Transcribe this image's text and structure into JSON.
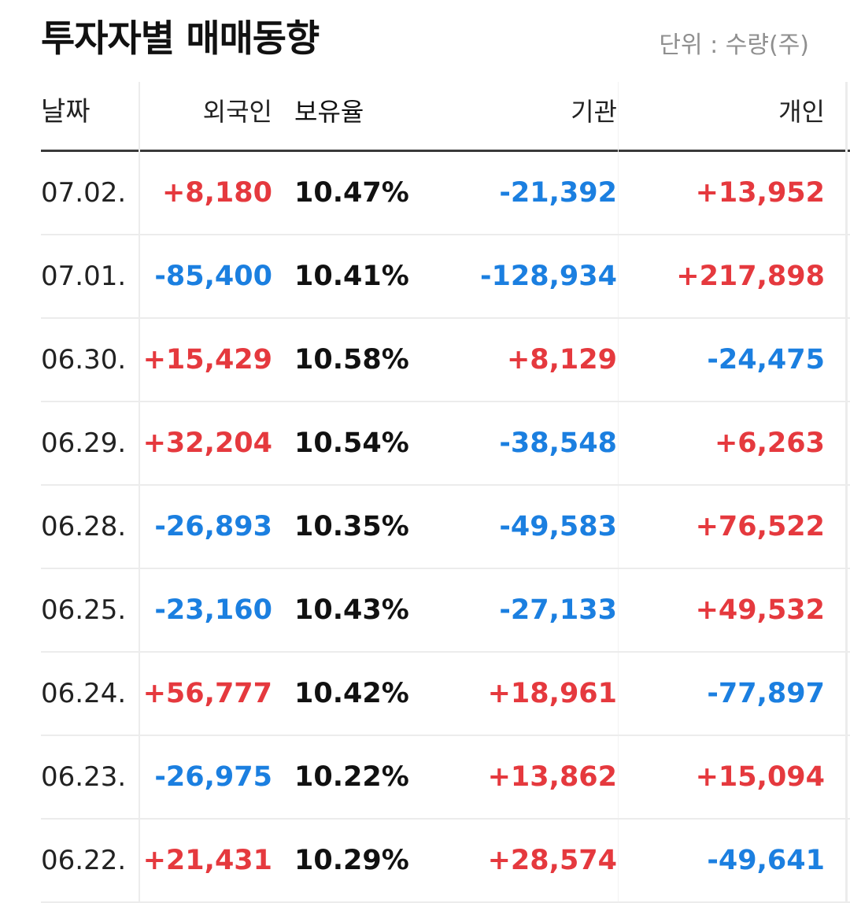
{
  "header": {
    "title": "투자자별 매매동향",
    "unit": "단위 : 수량(주)"
  },
  "table": {
    "columns": {
      "date": "날짜",
      "foreign": "외국인",
      "ratio": "보유율",
      "institution": "기관",
      "individual": "개인"
    },
    "rows": [
      {
        "date": "07.02.",
        "foreign": "+8,180",
        "ratio": "10.47%",
        "institution": "-21,392",
        "individual": "+13,952"
      },
      {
        "date": "07.01.",
        "foreign": "-85,400",
        "ratio": "10.41%",
        "institution": "-128,934",
        "individual": "+217,898"
      },
      {
        "date": "06.30.",
        "foreign": "+15,429",
        "ratio": "10.58%",
        "institution": "+8,129",
        "individual": "-24,475"
      },
      {
        "date": "06.29.",
        "foreign": "+32,204",
        "ratio": "10.54%",
        "institution": "-38,548",
        "individual": "+6,263"
      },
      {
        "date": "06.28.",
        "foreign": "-26,893",
        "ratio": "10.35%",
        "institution": "-49,583",
        "individual": "+76,522"
      },
      {
        "date": "06.25.",
        "foreign": "-23,160",
        "ratio": "10.43%",
        "institution": "-27,133",
        "individual": "+49,532"
      },
      {
        "date": "06.24.",
        "foreign": "+56,777",
        "ratio": "10.42%",
        "institution": "+18,961",
        "individual": "-77,897"
      },
      {
        "date": "06.23.",
        "foreign": "-26,975",
        "ratio": "10.22%",
        "institution": "+13,862",
        "individual": "+15,094"
      },
      {
        "date": "06.22.",
        "foreign": "+21,431",
        "ratio": "10.29%",
        "institution": "+28,574",
        "individual": "-49,641"
      }
    ]
  },
  "colors": {
    "positive": "#e5393e",
    "negative": "#1b7fe0",
    "text": "#111111",
    "muted": "#8f8f8f"
  }
}
